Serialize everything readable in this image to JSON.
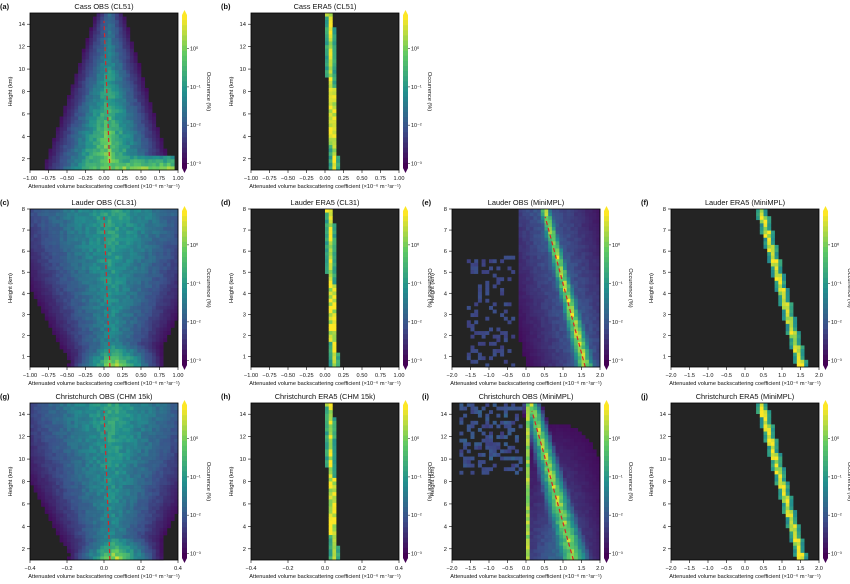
{
  "colormap": {
    "colors": [
      "#440154",
      "#3b528b",
      "#21908d",
      "#5dc963",
      "#fde725"
    ],
    "background": "#242424"
  },
  "chart_data": [
    {
      "type": "heatmap",
      "letter": "(a)",
      "title": "Cass OBS (CL51)",
      "xlabel": "Attenuated volume backscattering coefficient (×10⁻⁶ m⁻¹sr⁻¹)",
      "ylabel": "Height (km)",
      "xlim": [
        -1.0,
        1.0
      ],
      "ylim": [
        1,
        15
      ],
      "xticks": [
        "−1.00",
        "−0.75",
        "−0.50",
        "−0.25",
        "0.00",
        "0.25",
        "0.50",
        "0.75",
        "1.00"
      ],
      "yticks": [
        "2",
        "4",
        "6",
        "8",
        "10",
        "12",
        "14"
      ],
      "colorbar_label": "Occurrence (%)",
      "colorbar_ticks": [
        "10⁰",
        "10⁻¹",
        "10⁻²",
        "10⁻³"
      ],
      "pattern": "obs_cone",
      "mean_line": true
    },
    {
      "type": "heatmap",
      "letter": "(b)",
      "title": "Cass ERA5 (CL51)",
      "xlabel": "Attenuated volume backscattering coefficient (×10⁻⁶ m⁻¹sr⁻¹)",
      "ylabel": "Height (km)",
      "xlim": [
        -1.0,
        1.0
      ],
      "ylim": [
        1,
        15
      ],
      "xticks": [
        "−1.00",
        "−0.75",
        "−0.50",
        "−0.25",
        "0.00",
        "0.25",
        "0.50",
        "0.75",
        "1.00"
      ],
      "yticks": [
        "2",
        "4",
        "6",
        "8",
        "10",
        "12",
        "14"
      ],
      "colorbar_label": "Occurrence (%)",
      "colorbar_ticks": [
        "10⁰",
        "10⁻¹",
        "10⁻²",
        "10⁻³"
      ],
      "pattern": "era5_line",
      "mean_line": false
    },
    {
      "type": "heatmap",
      "letter": "(c)",
      "title": "Lauder OBS (CL31)",
      "xlabel": "Attenuated volume backscattering coefficient (×10⁻⁶ m⁻¹sr⁻¹)",
      "ylabel": "Height (km)",
      "xlim": [
        -1.0,
        1.0
      ],
      "ylim": [
        0.5,
        8
      ],
      "xticks": [
        "−1.00",
        "−0.75",
        "−0.50",
        "−0.25",
        "0.00",
        "0.25",
        "0.50",
        "0.75",
        "1.00"
      ],
      "yticks": [
        "1",
        "2",
        "3",
        "4",
        "5",
        "6",
        "7",
        "8"
      ],
      "colorbar_label": "Occurrence (%)",
      "colorbar_ticks": [
        "10⁰",
        "10⁻¹",
        "10⁻²",
        "10⁻³"
      ],
      "pattern": "obs_wide",
      "mean_line": true
    },
    {
      "type": "heatmap",
      "letter": "(d)",
      "title": "Lauder ERA5 (CL31)",
      "xlabel": "Attenuated volume backscattering coefficient (×10⁻⁶ m⁻¹sr⁻¹)",
      "ylabel": "Height (km)",
      "xlim": [
        -1.0,
        1.0
      ],
      "ylim": [
        0.5,
        8
      ],
      "xticks": [
        "−1.00",
        "−0.75",
        "−0.50",
        "−0.25",
        "0.00",
        "0.25",
        "0.50",
        "0.75",
        "1.00"
      ],
      "yticks": [
        "1",
        "2",
        "3",
        "4",
        "5",
        "6",
        "7",
        "8"
      ],
      "colorbar_label": "Occurrence (%)",
      "colorbar_ticks": [
        "10⁰",
        "10⁻¹",
        "10⁻²",
        "10⁻³"
      ],
      "pattern": "era5_line",
      "mean_line": false
    },
    {
      "type": "heatmap",
      "letter": "(e)",
      "title": "Lauder OBS (MiniMPL)",
      "xlabel": "Attenuated volume backscattering coefficient (×10⁻⁶ m⁻¹sr⁻¹)",
      "ylabel": "Height (km)",
      "xlim": [
        -2.0,
        2.0
      ],
      "ylim": [
        0.5,
        8
      ],
      "xticks": [
        "−2.0",
        "−1.5",
        "−1.0",
        "−0.5",
        "0.0",
        "0.5",
        "1.0",
        "1.5",
        "2.0"
      ],
      "yticks": [
        "1",
        "2",
        "3",
        "4",
        "5",
        "6",
        "7",
        "8"
      ],
      "colorbar_label": "Occurrence (%)",
      "colorbar_ticks": [
        "10⁰",
        "10⁻¹",
        "10⁻²",
        "10⁻³"
      ],
      "pattern": "mpl_band",
      "mean_line": true
    },
    {
      "type": "heatmap",
      "letter": "(f)",
      "title": "Lauder ERA5 (MiniMPL)",
      "xlabel": "Attenuated volume backscattering coefficient (×10⁻⁶ m⁻¹sr⁻¹)",
      "ylabel": "Height (km)",
      "xlim": [
        -2.0,
        2.0
      ],
      "ylim": [
        0.5,
        8
      ],
      "xticks": [
        "−2.0",
        "−1.5",
        "−1.0",
        "−0.5",
        "0.0",
        "0.5",
        "1.0",
        "1.5",
        "2.0"
      ],
      "yticks": [
        "1",
        "2",
        "3",
        "4",
        "5",
        "6",
        "7",
        "8"
      ],
      "colorbar_label": "Occurrence (%)",
      "colorbar_ticks": [
        "10⁰",
        "10⁻¹",
        "10⁻²",
        "10⁻³"
      ],
      "pattern": "mpl_steps",
      "mean_line": false
    },
    {
      "type": "heatmap",
      "letter": "(g)",
      "title": "Christchurch OBS (CHM 15k)",
      "xlabel": "Attenuated volume backscattering coefficient (×10⁻⁶ m⁻¹sr⁻¹)",
      "ylabel": "Height (km)",
      "xlim": [
        -0.5,
        0.5
      ],
      "ylim": [
        1,
        15
      ],
      "xticks": [
        "−0.4",
        "−0.2",
        "0.0",
        "0.2",
        "0.4"
      ],
      "yticks": [
        "2",
        "4",
        "6",
        "8",
        "10",
        "12",
        "14"
      ],
      "colorbar_label": "Occurrence (%)",
      "colorbar_ticks": [
        "10⁰",
        "10⁻¹",
        "10⁻²",
        "10⁻³"
      ],
      "pattern": "obs_wide",
      "mean_line": true
    },
    {
      "type": "heatmap",
      "letter": "(h)",
      "title": "Christchurch ERA5 (CHM 15k)",
      "xlabel": "Attenuated volume backscattering coefficient (×10⁻⁶ m⁻¹sr⁻¹)",
      "ylabel": "Height (km)",
      "xlim": [
        -0.5,
        0.5
      ],
      "ylim": [
        1,
        15
      ],
      "xticks": [
        "−0.4",
        "−0.2",
        "0.0",
        "0.2",
        "0.4"
      ],
      "yticks": [
        "2",
        "4",
        "6",
        "8",
        "10",
        "12",
        "14"
      ],
      "colorbar_label": "Occurrence (%)",
      "colorbar_ticks": [
        "10⁰",
        "10⁻¹",
        "10⁻²",
        "10⁻³"
      ],
      "pattern": "era5_line",
      "mean_line": false
    },
    {
      "type": "heatmap",
      "letter": "(i)",
      "title": "Christchurch OBS (MiniMPL)",
      "xlabel": "Attenuated volume backscattering coefficient (×10⁻⁶ m⁻¹sr⁻¹)",
      "ylabel": "Height (km)",
      "xlim": [
        -2.0,
        2.0
      ],
      "ylim": [
        1,
        15
      ],
      "xticks": [
        "−2.0",
        "−1.5",
        "−1.0",
        "−0.5",
        "0.0",
        "0.5",
        "1.0",
        "1.5",
        "2.0"
      ],
      "yticks": [
        "2",
        "4",
        "6",
        "8",
        "10",
        "12",
        "14"
      ],
      "colorbar_label": "Occurrence (%)",
      "colorbar_ticks": [
        "10⁰",
        "10⁻¹",
        "10⁻²",
        "10⁻³"
      ],
      "pattern": "mpl_fan",
      "mean_line": true
    },
    {
      "type": "heatmap",
      "letter": "(j)",
      "title": "Christchurch ERA5 (MiniMPL)",
      "xlabel": "Attenuated volume backscattering coefficient (×10⁻⁶ m⁻¹sr⁻¹)",
      "ylabel": "Height (km)",
      "xlim": [
        -2.0,
        2.0
      ],
      "ylim": [
        1,
        15
      ],
      "xticks": [
        "−2.0",
        "−1.5",
        "−1.0",
        "−0.5",
        "0.0",
        "0.5",
        "1.0",
        "1.5",
        "2.0"
      ],
      "yticks": [
        "2",
        "4",
        "6",
        "8",
        "10",
        "12",
        "14"
      ],
      "colorbar_label": "Occurrence (%)",
      "colorbar_ticks": [
        "10⁰",
        "10⁻¹",
        "10⁻²",
        "10⁻³"
      ],
      "pattern": "mpl_steps",
      "mean_line": false
    }
  ]
}
